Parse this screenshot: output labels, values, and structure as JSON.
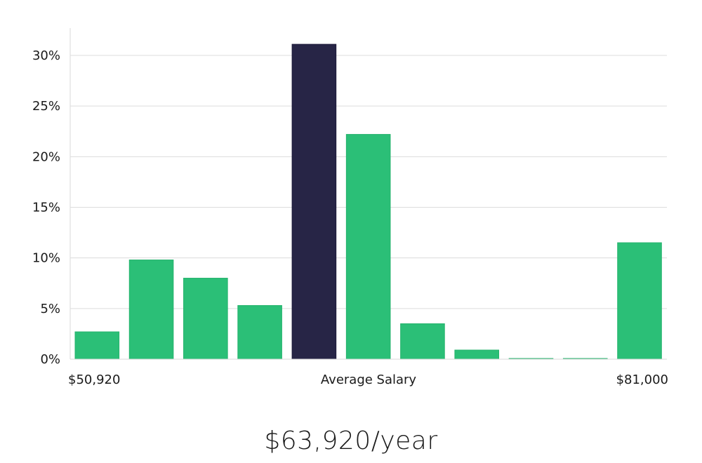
{
  "chart_data": {
    "type": "bar",
    "title": "",
    "xlabel": "",
    "ylabel": "",
    "ylim": [
      0,
      32
    ],
    "yticks": [
      0,
      5,
      10,
      15,
      20,
      25,
      30
    ],
    "ytick_suffix": "%",
    "values": [
      2.7,
      9.8,
      8.0,
      5.3,
      31.1,
      22.2,
      3.5,
      0.9,
      0.05,
      0.05,
      11.5
    ],
    "highlight_index": 4,
    "bar_color": "#2bbf77",
    "highlight_color": "#272546",
    "grid": true,
    "x_labels": {
      "left": "$50,920",
      "center": "Average Salary",
      "right": "$81,000"
    }
  },
  "caption": "$63,920/year"
}
